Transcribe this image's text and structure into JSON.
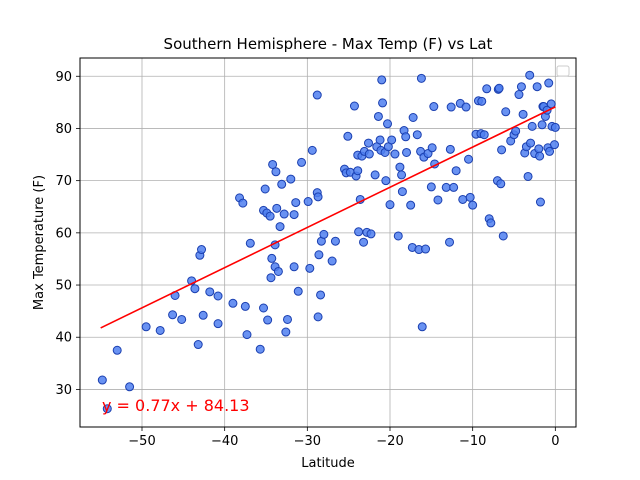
{
  "chart_data": {
    "type": "scatter",
    "title": "Southern Hemisphere - Max Temp (F) vs Lat",
    "xlabel": "Latitude",
    "ylabel": "Max Temperature (F)",
    "xlim": [
      -57.5,
      2.5
    ],
    "ylim": [
      22.8,
      93.5
    ],
    "xticks": [
      -50,
      -40,
      -30,
      -20,
      -10,
      0
    ],
    "yticks": [
      30,
      40,
      50,
      60,
      70,
      80,
      90
    ],
    "grid": true,
    "legend": "top-right (empty)",
    "colors": {
      "points_fill": "#4f7ff0",
      "points_edge": "#1a3fb0",
      "line": "#ff0000",
      "annotation": "#ff0000"
    },
    "regression": {
      "slope": 0.77,
      "intercept": 84.13,
      "x_range": [
        -55,
        0
      ],
      "equation": "y = 0.77x + 84.13"
    },
    "points": [
      [
        -54.8,
        31.8
      ],
      [
        -54.2,
        26.3
      ],
      [
        -53.0,
        37.5
      ],
      [
        -51.5,
        30.5
      ],
      [
        -49.5,
        42.0
      ],
      [
        -47.8,
        41.3
      ],
      [
        -46.3,
        44.3
      ],
      [
        -46.0,
        48.0
      ],
      [
        -45.2,
        43.4
      ],
      [
        -44.0,
        50.8
      ],
      [
        -43.6,
        49.3
      ],
      [
        -43.2,
        38.6
      ],
      [
        -43.0,
        55.7
      ],
      [
        -42.8,
        56.8
      ],
      [
        -42.6,
        44.2
      ],
      [
        -41.8,
        48.7
      ],
      [
        -40.8,
        47.9
      ],
      [
        -40.8,
        42.6
      ],
      [
        -39.0,
        46.5
      ],
      [
        -38.2,
        66.7
      ],
      [
        -37.8,
        65.7
      ],
      [
        -37.5,
        45.9
      ],
      [
        -37.3,
        40.5
      ],
      [
        -36.9,
        58.0
      ],
      [
        -35.7,
        37.7
      ],
      [
        -35.3,
        45.6
      ],
      [
        -35.3,
        64.3
      ],
      [
        -35.1,
        68.4
      ],
      [
        -34.9,
        63.8
      ],
      [
        -34.8,
        43.3
      ],
      [
        -34.5,
        63.2
      ],
      [
        -34.4,
        51.4
      ],
      [
        -34.3,
        55.1
      ],
      [
        -34.2,
        73.1
      ],
      [
        -33.9,
        53.5
      ],
      [
        -33.9,
        57.7
      ],
      [
        -33.8,
        71.7
      ],
      [
        -33.7,
        64.7
      ],
      [
        -33.5,
        52.6
      ],
      [
        -33.3,
        61.2
      ],
      [
        -33.1,
        69.3
      ],
      [
        -32.8,
        63.6
      ],
      [
        -32.6,
        41.0
      ],
      [
        -32.4,
        43.4
      ],
      [
        -32.0,
        70.3
      ],
      [
        -31.6,
        53.5
      ],
      [
        -31.6,
        63.5
      ],
      [
        -31.4,
        65.8
      ],
      [
        -31.1,
        48.8
      ],
      [
        -30.7,
        73.5
      ],
      [
        -29.9,
        66.0
      ],
      [
        -29.7,
        53.2
      ],
      [
        -29.4,
        75.8
      ],
      [
        -28.8,
        67.7
      ],
      [
        -28.8,
        86.4
      ],
      [
        -28.7,
        66.9
      ],
      [
        -28.7,
        43.9
      ],
      [
        -28.6,
        55.8
      ],
      [
        -28.4,
        48.1
      ],
      [
        -28.3,
        58.4
      ],
      [
        -28.0,
        59.7
      ],
      [
        -27.0,
        54.6
      ],
      [
        -26.6,
        58.4
      ],
      [
        -25.5,
        72.2
      ],
      [
        -25.3,
        71.5
      ],
      [
        -25.1,
        78.5
      ],
      [
        -24.8,
        71.6
      ],
      [
        -24.3,
        84.3
      ],
      [
        -24.1,
        70.9
      ],
      [
        -23.9,
        71.9
      ],
      [
        -23.9,
        74.9
      ],
      [
        -23.8,
        60.2
      ],
      [
        -23.6,
        66.4
      ],
      [
        -23.4,
        74.7
      ],
      [
        -23.2,
        58.2
      ],
      [
        -23.1,
        75.6
      ],
      [
        -22.8,
        60.1
      ],
      [
        -22.6,
        77.2
      ],
      [
        -22.5,
        75.1
      ],
      [
        -22.3,
        59.8
      ],
      [
        -21.8,
        71.1
      ],
      [
        -21.6,
        76.5
      ],
      [
        -21.4,
        82.3
      ],
      [
        -21.2,
        77.8
      ],
      [
        -21.1,
        75.8
      ],
      [
        -21.0,
        89.3
      ],
      [
        -20.9,
        84.9
      ],
      [
        -20.6,
        75.4
      ],
      [
        -20.5,
        70.0
      ],
      [
        -20.3,
        80.9
      ],
      [
        -20.2,
        76.5
      ],
      [
        -20.0,
        65.4
      ],
      [
        -19.8,
        77.8
      ],
      [
        -19.4,
        75.1
      ],
      [
        -19.0,
        59.4
      ],
      [
        -18.8,
        72.6
      ],
      [
        -18.6,
        71.1
      ],
      [
        -18.5,
        67.9
      ],
      [
        -18.3,
        79.6
      ],
      [
        -18.1,
        78.4
      ],
      [
        -18.0,
        75.4
      ],
      [
        -17.5,
        65.3
      ],
      [
        -17.3,
        57.2
      ],
      [
        -17.2,
        82.1
      ],
      [
        -16.7,
        78.8
      ],
      [
        -16.5,
        56.8
      ],
      [
        -16.3,
        75.6
      ],
      [
        -16.2,
        89.6
      ],
      [
        -16.1,
        42.0
      ],
      [
        -15.9,
        74.5
      ],
      [
        -15.7,
        56.9
      ],
      [
        -15.4,
        75.2
      ],
      [
        -15.0,
        68.8
      ],
      [
        -14.9,
        76.3
      ],
      [
        -14.7,
        84.2
      ],
      [
        -14.6,
        73.2
      ],
      [
        -14.2,
        66.3
      ],
      [
        -13.2,
        68.7
      ],
      [
        -12.8,
        58.2
      ],
      [
        -12.7,
        76.0
      ],
      [
        -12.6,
        84.1
      ],
      [
        -12.3,
        68.7
      ],
      [
        -12.0,
        71.9
      ],
      [
        -11.5,
        84.8
      ],
      [
        -11.2,
        66.4
      ],
      [
        -10.8,
        84.1
      ],
      [
        -10.5,
        74.1
      ],
      [
        -10.3,
        66.8
      ],
      [
        -10.0,
        65.3
      ],
      [
        -9.6,
        78.9
      ],
      [
        -9.3,
        85.3
      ],
      [
        -9.0,
        79.0
      ],
      [
        -8.9,
        85.2
      ],
      [
        -8.6,
        78.8
      ],
      [
        -8.3,
        87.6
      ],
      [
        -8.0,
        62.7
      ],
      [
        -7.8,
        61.9
      ],
      [
        -7.0,
        70.0
      ],
      [
        -6.9,
        87.5
      ],
      [
        -6.8,
        87.7
      ],
      [
        -6.6,
        69.4
      ],
      [
        -6.5,
        75.9
      ],
      [
        -6.3,
        59.4
      ],
      [
        -6.0,
        83.2
      ],
      [
        -5.4,
        77.6
      ],
      [
        -5.0,
        78.8
      ],
      [
        -4.8,
        79.5
      ],
      [
        -4.4,
        86.5
      ],
      [
        -4.1,
        88.0
      ],
      [
        -3.9,
        82.7
      ],
      [
        -3.7,
        75.3
      ],
      [
        -3.5,
        76.5
      ],
      [
        -3.3,
        70.8
      ],
      [
        -3.1,
        90.2
      ],
      [
        -3.0,
        77.2
      ],
      [
        -2.8,
        80.4
      ],
      [
        -2.5,
        75.2
      ],
      [
        -2.2,
        88.0
      ],
      [
        -2.0,
        76.1
      ],
      [
        -1.9,
        74.7
      ],
      [
        -1.8,
        65.9
      ],
      [
        -1.6,
        80.7
      ],
      [
        -1.5,
        84.2
      ],
      [
        -1.4,
        84.2
      ],
      [
        -1.2,
        82.3
      ],
      [
        -1.0,
        83.5
      ],
      [
        -0.9,
        76.3
      ],
      [
        -0.8,
        88.7
      ],
      [
        -0.7,
        75.6
      ],
      [
        -0.5,
        84.7
      ],
      [
        -0.4,
        80.4
      ],
      [
        -0.1,
        76.9
      ],
      [
        0.0,
        80.2
      ]
    ]
  }
}
